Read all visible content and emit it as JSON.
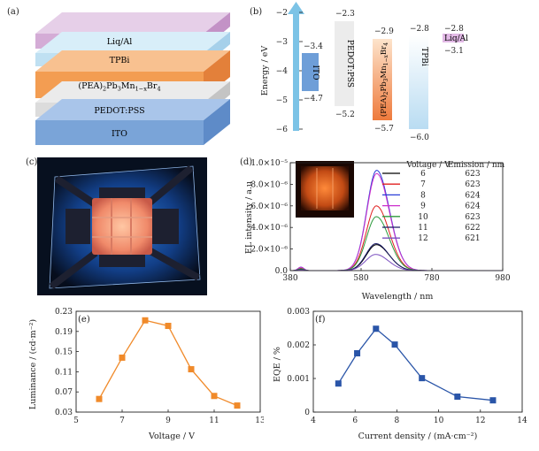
{
  "panels": {
    "a": {
      "label": "(a)",
      "layers": [
        {
          "name": "Liq/Al",
          "color": "#d4acd6"
        },
        {
          "name": "TPBi",
          "color": "#bfe0f2"
        },
        {
          "name": "(PEA)2Pb₃Mn1−xBr4",
          "rich": [
            "(PEA)",
            "2",
            "Pb",
            "3",
            "Mn",
            "1−x",
            "Br",
            "4"
          ],
          "color": "#f39d52"
        },
        {
          "name": "PEDOT:PSS",
          "color": "#dcdcdc"
        },
        {
          "name": "ITO",
          "color": "#7aa4d8"
        }
      ]
    },
    "b": {
      "label": "(b)",
      "ylabel": "Energy / eV",
      "yticks": [
        "−2",
        "−3",
        "−4",
        "−5",
        "−6"
      ],
      "levels": [
        {
          "name": "ITO",
          "top": "−3.4",
          "bottom": "−4.7"
        },
        {
          "name": "PEDOT:PSS",
          "top": "−2.3",
          "bottom": "−5.2"
        },
        {
          "name": "(PEA)2Pb3Mn1−xBr4",
          "top": "−2.9",
          "bottom": "−5.7"
        },
        {
          "name": "TPBi",
          "top": "−2.8",
          "bottom": "−6.0"
        },
        {
          "name": "Liq/Al",
          "top": "−2.8",
          "bottom": "−3.1"
        }
      ]
    },
    "c": {
      "label": "(c)"
    },
    "d": {
      "label": "(d)"
    },
    "e": {
      "label": "(e)"
    },
    "f": {
      "label": "(f)"
    }
  },
  "chart_data": [
    {
      "type": "line",
      "panel": "d",
      "xlabel": "Wavelength / nm",
      "ylabel": "EL intensity / a.u",
      "xlim": [
        380,
        980
      ],
      "ylim": [
        0,
        1e-05
      ],
      "xticks": [
        "380",
        "580",
        "780",
        "980"
      ],
      "yticks": [
        "0.0",
        "2.0×10⁻⁶",
        "4.0×10⁻⁶",
        "6.0×10⁻⁶",
        "8.0×10⁻⁶",
        "1.0×10⁻⁵"
      ],
      "legend_header": {
        "voltage": "Voltage / V",
        "emission": "Emission / nm"
      },
      "series": [
        {
          "name": "6",
          "emission": "623",
          "peak_wavelength": 623,
          "peak_intensity": 2.4e-06,
          "color": "#000000"
        },
        {
          "name": "7",
          "emission": "623",
          "peak_wavelength": 623,
          "peak_intensity": 6e-06,
          "color": "#e02020"
        },
        {
          "name": "8",
          "emission": "624",
          "peak_wavelength": 624,
          "peak_intensity": 9.3e-06,
          "color": "#2a3fd8"
        },
        {
          "name": "9",
          "emission": "624",
          "peak_wavelength": 624,
          "peak_intensity": 9e-06,
          "color": "#cc2fcc"
        },
        {
          "name": "10",
          "emission": "623",
          "peak_wavelength": 623,
          "peak_intensity": 5e-06,
          "color": "#2c9a3c"
        },
        {
          "name": "11",
          "emission": "622",
          "peak_wavelength": 622,
          "peak_intensity": 2.5e-06,
          "color": "#1a1a66"
        },
        {
          "name": "12",
          "emission": "621",
          "peak_wavelength": 621,
          "peak_intensity": 1.5e-06,
          "color": "#7a4fbf"
        }
      ],
      "legend": "top-right"
    },
    {
      "type": "line",
      "panel": "e",
      "xlabel": "Voltage / V",
      "ylabel": "Luminance / (cd·m⁻²)",
      "xlim": [
        5,
        13
      ],
      "ylim": [
        0.03,
        0.23
      ],
      "xticks": [
        "5",
        "7",
        "9",
        "11",
        "13"
      ],
      "yticks": [
        "0.03",
        "0.07",
        "0.11",
        "0.15",
        "0.19",
        "0.23"
      ],
      "x": [
        6,
        7,
        8,
        9,
        10,
        11,
        12
      ],
      "values": [
        0.056,
        0.138,
        0.212,
        0.201,
        0.115,
        0.062,
        0.043
      ],
      "color": "#f08a2a"
    },
    {
      "type": "line",
      "panel": "f",
      "xlabel": "Current density / (mA·cm⁻²)",
      "ylabel": "EQE / %",
      "xlim": [
        4,
        14
      ],
      "ylim": [
        0,
        0.003
      ],
      "xticks": [
        "4",
        "6",
        "8",
        "10",
        "12",
        "14"
      ],
      "yticks": [
        "0",
        "0.001",
        "0.002",
        "0.003"
      ],
      "x": [
        5.2,
        6.1,
        7.0,
        7.9,
        9.2,
        10.9,
        12.6
      ],
      "values": [
        0.00085,
        0.00175,
        0.00248,
        0.00201,
        0.00101,
        0.00046,
        0.00035
      ],
      "color": "#2a55a8"
    }
  ]
}
